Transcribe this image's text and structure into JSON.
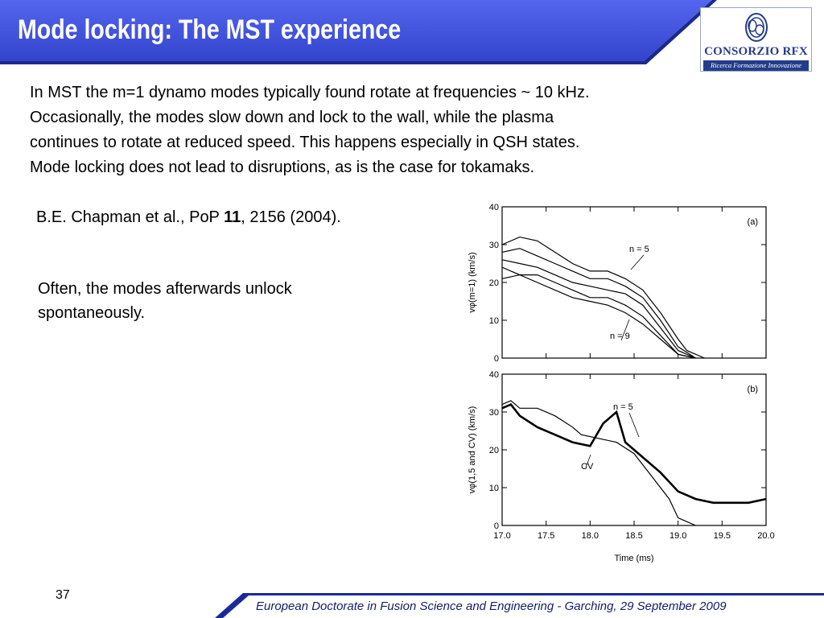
{
  "slide": {
    "title": "Mode locking: The MST experience",
    "paragraphs": [
      "In MST the m=1 dynamo modes typically found rotate at frequencies ~ 10 kHz.",
      "Occasionally, the modes slow down and lock to the wall, while the plasma",
      "continues to rotate at reduced speed. This happens especially in QSH states.",
      "Mode locking does not lead to disruptions, as is the case for tokamaks."
    ],
    "reference": {
      "prefix": "B.E. Chapman et al., PoP ",
      "volume": "11",
      "suffix": ", 2156 (2004)."
    },
    "note": "Often, the modes afterwards unlock spontaneously.",
    "page_number": "37",
    "footer": "European Doctorate in Fusion Science and Engineering  -  Garching, 29 September 2009"
  },
  "logo": {
    "name": "CONSORZIO RFX",
    "tagline": "Ricerca Formazione Innovazione",
    "color": "#243d8a"
  },
  "colors": {
    "header_blue": "#3b4ed8",
    "header_dark": "#1a2a8c",
    "footer_blue": "#1a2a9a"
  },
  "chart_data": [
    {
      "type": "line",
      "panel_label": "(a)",
      "xlabel": "",
      "ylabel": "vφ(m=1)  (km/s)",
      "xlim": [
        17.0,
        20.0
      ],
      "ylim": [
        0,
        40
      ],
      "yticks": [
        "0",
        "10",
        "20",
        "30",
        "40"
      ],
      "annotations": [
        "n = 5",
        "n = 9"
      ],
      "series": [
        {
          "x": [
            17.0,
            17.2,
            17.4,
            17.6,
            17.8,
            18.0,
            18.2,
            18.4,
            18.6,
            18.8,
            19.0,
            19.1,
            19.3
          ],
          "y": [
            30,
            32,
            31,
            28,
            25,
            23,
            23,
            21,
            18,
            12,
            5,
            2,
            0
          ]
        },
        {
          "x": [
            17.0,
            17.2,
            17.4,
            17.6,
            17.8,
            18.0,
            18.2,
            18.4,
            18.6,
            18.8,
            19.0,
            19.2
          ],
          "y": [
            28,
            29,
            27,
            25,
            23,
            21,
            21,
            19,
            16,
            10,
            3,
            0
          ]
        },
        {
          "x": [
            17.0,
            17.2,
            17.4,
            17.6,
            17.8,
            18.0,
            18.2,
            18.4,
            18.6,
            18.8,
            19.0,
            19.2
          ],
          "y": [
            26,
            25,
            24,
            22,
            20,
            19,
            18,
            17,
            14,
            8,
            2,
            0
          ]
        },
        {
          "x": [
            17.0,
            17.2,
            17.4,
            17.6,
            17.8,
            18.0,
            18.2,
            18.4,
            18.6,
            18.8,
            19.0,
            19.2
          ],
          "y": [
            24,
            22,
            22,
            20,
            18,
            16,
            16,
            14,
            11,
            6,
            1,
            0
          ]
        },
        {
          "x": [
            17.0,
            17.2,
            17.4,
            17.6,
            17.8,
            18.0,
            18.2,
            18.4,
            18.6,
            18.8,
            19.0,
            19.2
          ],
          "y": [
            21,
            22,
            20,
            18,
            16,
            15,
            14,
            12,
            9,
            5,
            1,
            0
          ]
        }
      ]
    },
    {
      "type": "line",
      "panel_label": "(b)",
      "xlabel": "Time  (ms)",
      "ylabel": "vφ(1,5 and CV)  (km/s)",
      "xlim": [
        17.0,
        20.0
      ],
      "ylim": [
        0,
        40
      ],
      "yticks": [
        "0",
        "10",
        "20",
        "30",
        "40"
      ],
      "xticks": [
        "17.0",
        "17.5",
        "18.0",
        "18.5",
        "19.0",
        "19.5",
        "20.0"
      ],
      "annotations": [
        "n = 5",
        "CV"
      ],
      "series": [
        {
          "name": "n = 5",
          "x": [
            17.0,
            17.1,
            17.2,
            17.4,
            17.6,
            17.8,
            17.9,
            18.1,
            18.3,
            18.5,
            18.7,
            18.9,
            19.0,
            19.1,
            19.2
          ],
          "y": [
            32,
            33,
            31,
            31,
            29,
            26,
            24,
            23,
            22,
            19,
            13,
            7,
            2,
            1,
            0
          ]
        },
        {
          "name": "CV",
          "x": [
            17.0,
            17.1,
            17.2,
            17.4,
            17.6,
            17.8,
            18.0,
            18.15,
            18.3,
            18.4,
            18.6,
            18.8,
            19.0,
            19.2,
            19.4,
            19.6,
            19.8,
            20.0
          ],
          "y": [
            31,
            32,
            29,
            26,
            24,
            22,
            21,
            27,
            30,
            22,
            18,
            14,
            9,
            7,
            6,
            6,
            6,
            7
          ]
        }
      ]
    }
  ]
}
